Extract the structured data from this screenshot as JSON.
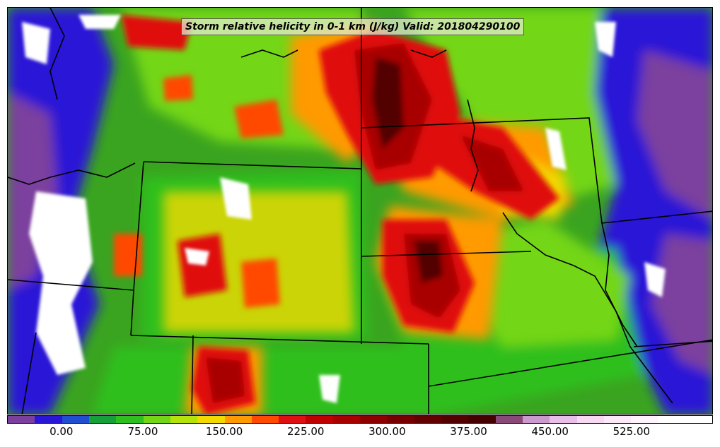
{
  "title": "Storm relative helicity in 0-1 km (J/kg) Valid: 201804290100",
  "colorbar": {
    "min": -50,
    "max": 600,
    "step": 25,
    "colors": [
      "#7b3f9e",
      "#2a16d6",
      "#1f4fd0",
      "#15a03a",
      "#2fbf1f",
      "#73d614",
      "#b4e30c",
      "#f2d900",
      "#ff9a00",
      "#ff4a00",
      "#e01010",
      "#c00000",
      "#a80000",
      "#8e0000",
      "#760000",
      "#620000",
      "#520000",
      "#440000",
      "#8a4a78",
      "#c99acb",
      "#e8bfe8",
      "#f7d9f2",
      "#fbe8f8",
      "#fff4fd",
      "#ffffff",
      "#ffffff"
    ],
    "labels": [
      {
        "text": "0.00",
        "value": 0
      },
      {
        "text": "75.00",
        "value": 75
      },
      {
        "text": "150.00",
        "value": 150
      },
      {
        "text": "225.00",
        "value": 225
      },
      {
        "text": "300.00",
        "value": 300
      },
      {
        "text": "375.00",
        "value": 375
      },
      {
        "text": "450.00",
        "value": 450
      },
      {
        "text": "525.00",
        "value": 525
      }
    ]
  }
}
